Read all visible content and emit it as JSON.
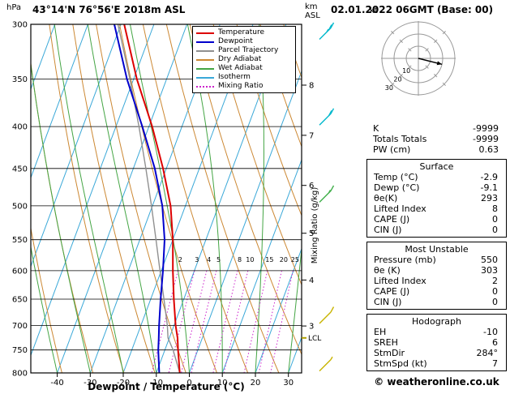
{
  "header": {
    "title": "43°14'N 76°56'E 2018m ASL",
    "pressure_unit": "hPa",
    "altitude_unit_line1": "km",
    "altitude_unit_line2": "ASL",
    "date": "02.01.2022 06GMT (Base: 00)"
  },
  "footer": {
    "copyright": "© weatheronline.co.uk"
  },
  "legend": {
    "items": [
      {
        "label": "Temperature",
        "color": "#dd0000",
        "line_style": "solid"
      },
      {
        "label": "Dewpoint",
        "color": "#0000cc",
        "line_style": "solid"
      },
      {
        "label": "Parcel Trajectory",
        "color": "#909090",
        "line_style": "solid"
      },
      {
        "label": "Dry Adiabat",
        "color": "#cc8833",
        "line_style": "solid"
      },
      {
        "label": "Wet Adiabat",
        "color": "#44a544",
        "line_style": "solid"
      },
      {
        "label": "Isotherm",
        "color": "#3aa8d8",
        "line_style": "solid"
      },
      {
        "label": "Mixing Ratio",
        "color": "#cc22cc",
        "line_style": "dotted"
      }
    ]
  },
  "chart_data": {
    "type": "line",
    "subtype": "skew-t-log-p-sounding",
    "title": "43°14'N 76°56'E 2018m ASL",
    "xlabel": "Dewpoint / Temperature (°C)",
    "x_ticks_c": [
      -40,
      -30,
      -20,
      -10,
      0,
      10,
      20,
      30
    ],
    "x_range_c": [
      -48,
      34
    ],
    "pressure_axis_unit": "hPa",
    "pressure_ticks_hpa": [
      300,
      350,
      400,
      450,
      500,
      550,
      600,
      650,
      700,
      750,
      800
    ],
    "pressure_range_hpa": [
      300,
      800
    ],
    "right_axis_label": "Mixing Ratio (g/kg)",
    "km_asl_ticks": [
      {
        "km": "8",
        "p_hpa": 356
      },
      {
        "km": "7",
        "p_hpa": 410
      },
      {
        "km": "6",
        "p_hpa": 472
      },
      {
        "km": "5",
        "p_hpa": 540
      },
      {
        "km": "4",
        "p_hpa": 616
      },
      {
        "km": "3",
        "p_hpa": 701
      }
    ],
    "lcl_marker": {
      "label": "LCL",
      "p_hpa": 725
    },
    "pressure_hpa": [
      800,
      750,
      725,
      700,
      650,
      600,
      550,
      500,
      450,
      400,
      350,
      300
    ],
    "series": [
      {
        "name": "Temperature",
        "color": "#dd0000",
        "width": 2,
        "values_c": [
          -2.9,
          -6.0,
          -7.5,
          -9.5,
          -13.0,
          -16.5,
          -20.0,
          -24.5,
          -31.0,
          -39.0,
          -49.0,
          -59.0
        ]
      },
      {
        "name": "Dewpoint",
        "color": "#0000cc",
        "width": 2,
        "values_c": [
          -9.1,
          -12.0,
          -13.2,
          -14.5,
          -17.0,
          -19.5,
          -22.5,
          -27.0,
          -33.5,
          -42.0,
          -52.0,
          -62.0
        ]
      },
      {
        "name": "Parcel Trajectory",
        "color": "#909090",
        "width": 1.4,
        "values_c": [
          -2.9,
          -7.5,
          -10.4,
          -12.0,
          -16.0,
          -20.4,
          -25.1,
          -30.3,
          -36.2,
          -43.0,
          -51.1,
          -60.9
        ]
      }
    ],
    "background_lines": {
      "isotherm": {
        "color": "#3aa8d8",
        "step_c": 10
      },
      "dry_adiabat": {
        "color": "#cc8833",
        "step_k": 10
      },
      "wet_adiabat": {
        "color": "#44a544",
        "step_c": 10
      },
      "mixing_ratio": {
        "color": "#cc22cc",
        "values_gkg": [
          2,
          3,
          4,
          5,
          8,
          10,
          15,
          20,
          25
        ]
      }
    },
    "wind_barbs": [
      {
        "p_hpa": 308,
        "color": "#00b8cc",
        "speed_kt": 25
      },
      {
        "p_hpa": 392,
        "color": "#00b8cc",
        "speed_kt": 20
      },
      {
        "p_hpa": 487,
        "color": "#3fae49",
        "speed_kt": 15
      },
      {
        "p_hpa": 685,
        "color": "#c8b400",
        "speed_kt": 10
      },
      {
        "p_hpa": 783,
        "color": "#c8b400",
        "speed_kt": 5
      }
    ]
  },
  "hodograph": {
    "unit": "kt",
    "rings_kt": [
      10,
      20,
      30
    ],
    "storm_dir_deg": 284,
    "storm_spd_kt": 7
  },
  "stats": {
    "plain_rows": [
      {
        "label": "K",
        "value": "-9999"
      },
      {
        "label": "Totals Totals",
        "value": "-9999"
      },
      {
        "label": "PW (cm)",
        "value": "0.63"
      }
    ],
    "sections": [
      {
        "title": "Surface",
        "rows": [
          {
            "label": "Temp (°C)",
            "value": "-2.9"
          },
          {
            "label": "Dewp (°C)",
            "value": "-9.1"
          },
          {
            "label": "θe(K)",
            "value": "293"
          },
          {
            "label": "Lifted Index",
            "value": "8"
          },
          {
            "label": "CAPE (J)",
            "value": "0"
          },
          {
            "label": "CIN (J)",
            "value": "0"
          }
        ]
      },
      {
        "title": "Most Unstable",
        "rows": [
          {
            "label": "Pressure (mb)",
            "value": "550"
          },
          {
            "label": "θe (K)",
            "value": "303"
          },
          {
            "label": "Lifted Index",
            "value": "2"
          },
          {
            "label": "CAPE (J)",
            "value": "0"
          },
          {
            "label": "CIN (J)",
            "value": "0"
          }
        ]
      },
      {
        "title": "Hodograph",
        "rows": [
          {
            "label": "EH",
            "value": "-10"
          },
          {
            "label": "SREH",
            "value": "6"
          },
          {
            "label": "StmDir",
            "value": "284°"
          },
          {
            "label": "StmSpd (kt)",
            "value": "7"
          }
        ]
      }
    ]
  }
}
